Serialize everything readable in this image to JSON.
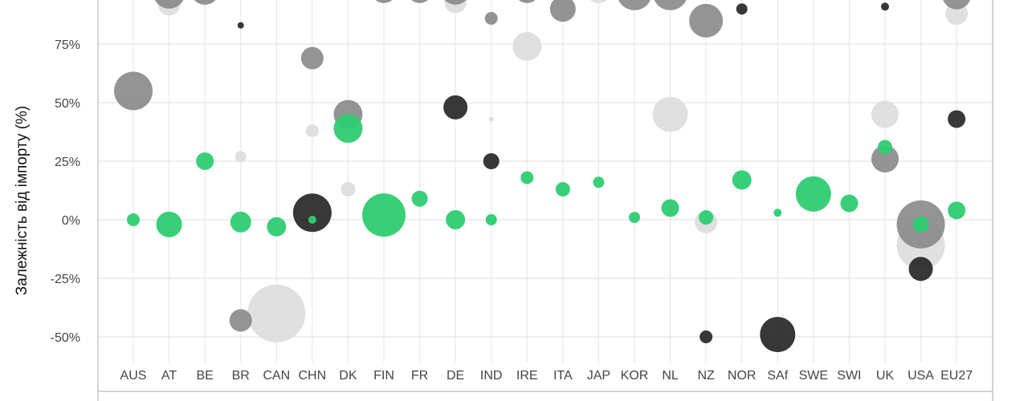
{
  "chart_data": {
    "type": "scatter",
    "subtype": "bubble",
    "title": "",
    "xlabel": "",
    "ylabel": "Залежність від імпорту (%)",
    "ylim": [
      -65,
      100
    ],
    "yticks": [
      -50,
      -25,
      0,
      25,
      50,
      75
    ],
    "ytick_labels": [
      "-50%",
      "-25%",
      "0%",
      "25%",
      "50%",
      "75%"
    ],
    "grid": true,
    "legend": "none",
    "categories": [
      "AUS",
      "AT",
      "BE",
      "BR",
      "CAN",
      "CHN",
      "DK",
      "FIN",
      "FR",
      "DE",
      "IND",
      "IRE",
      "ITA",
      "JAP",
      "KOR",
      "NL",
      "NZ",
      "NOR",
      "SAf",
      "SWE",
      "SWI",
      "UK",
      "USA",
      "EU27"
    ],
    "colors": {
      "green": "#2ecc71",
      "dark": "#222222",
      "medium": "#888888",
      "light": "#dddddd"
    },
    "series": [
      {
        "color_key": "light",
        "points": [
          {
            "category": "AT",
            "y": 92,
            "size": 14
          },
          {
            "category": "BR",
            "y": 27,
            "size": 7
          },
          {
            "category": "CAN",
            "y": -40,
            "size": 36
          },
          {
            "category": "CHN",
            "y": 38,
            "size": 8
          },
          {
            "category": "DK",
            "y": 13,
            "size": 9
          },
          {
            "category": "DE",
            "y": 93,
            "size": 14
          },
          {
            "category": "IRE",
            "y": 74,
            "size": 18
          },
          {
            "category": "JAP",
            "y": 98,
            "size": 16
          },
          {
            "category": "NL",
            "y": 45,
            "size": 22
          },
          {
            "category": "NZ",
            "y": -1,
            "size": 14
          },
          {
            "category": "UK",
            "y": 45,
            "size": 17
          },
          {
            "category": "USA",
            "y": -11,
            "size": 30
          },
          {
            "category": "EU27",
            "y": 88,
            "size": 14
          },
          {
            "category": "IND",
            "y": 43,
            "size": 3
          }
        ]
      },
      {
        "color_key": "medium",
        "points": [
          {
            "category": "AUS",
            "y": 55,
            "size": 24
          },
          {
            "category": "AT",
            "y": 97,
            "size": 20
          },
          {
            "category": "BE",
            "y": 98,
            "size": 18
          },
          {
            "category": "BR",
            "y": -43,
            "size": 14
          },
          {
            "category": "CHN",
            "y": 69,
            "size": 14
          },
          {
            "category": "DK",
            "y": 45,
            "size": 18
          },
          {
            "category": "FIN",
            "y": 98,
            "size": 16
          },
          {
            "category": "FR",
            "y": 98,
            "size": 16
          },
          {
            "category": "DE",
            "y": 98,
            "size": 18
          },
          {
            "category": "IND",
            "y": 86,
            "size": 8
          },
          {
            "category": "IRE",
            "y": 98,
            "size": 16
          },
          {
            "category": "ITA",
            "y": 90,
            "size": 16
          },
          {
            "category": "KOR",
            "y": 97,
            "size": 22
          },
          {
            "category": "NL",
            "y": 97,
            "size": 22
          },
          {
            "category": "NZ",
            "y": 85,
            "size": 21
          },
          {
            "category": "SWE",
            "y": 98,
            "size": 12
          },
          {
            "category": "SWI",
            "y": 98,
            "size": 12
          },
          {
            "category": "UK",
            "y": 26,
            "size": 17
          },
          {
            "category": "USA",
            "y": -2,
            "size": 30
          },
          {
            "category": "EU27",
            "y": 96,
            "size": 18
          }
        ]
      },
      {
        "color_key": "dark",
        "points": [
          {
            "category": "BR",
            "y": 83,
            "size": 4
          },
          {
            "category": "CHN",
            "y": 3,
            "size": 24
          },
          {
            "category": "DE",
            "y": 48,
            "size": 15
          },
          {
            "category": "IND",
            "y": 25,
            "size": 10
          },
          {
            "category": "NZ",
            "y": -50,
            "size": 8
          },
          {
            "category": "NOR",
            "y": 90,
            "size": 7
          },
          {
            "category": "SAf",
            "y": -49,
            "size": 22
          },
          {
            "category": "UK",
            "y": 91,
            "size": 5
          },
          {
            "category": "USA",
            "y": -21,
            "size": 15
          },
          {
            "category": "EU27",
            "y": 43,
            "size": 11
          }
        ]
      },
      {
        "color_key": "green",
        "points": [
          {
            "category": "AUS",
            "y": 0,
            "size": 8
          },
          {
            "category": "AT",
            "y": -2,
            "size": 16
          },
          {
            "category": "BE",
            "y": 25,
            "size": 11
          },
          {
            "category": "BR",
            "y": -1,
            "size": 13
          },
          {
            "category": "CAN",
            "y": -3,
            "size": 12
          },
          {
            "category": "CHN",
            "y": 0,
            "size": 5
          },
          {
            "category": "DK",
            "y": 39,
            "size": 18
          },
          {
            "category": "FIN",
            "y": 2,
            "size": 27
          },
          {
            "category": "FR",
            "y": 9,
            "size": 10
          },
          {
            "category": "DE",
            "y": 0,
            "size": 12
          },
          {
            "category": "IND",
            "y": 0,
            "size": 7
          },
          {
            "category": "IRE",
            "y": 18,
            "size": 8
          },
          {
            "category": "ITA",
            "y": 13,
            "size": 9
          },
          {
            "category": "JAP",
            "y": 16,
            "size": 7
          },
          {
            "category": "KOR",
            "y": 1,
            "size": 7
          },
          {
            "category": "NL",
            "y": 5,
            "size": 11
          },
          {
            "category": "NZ",
            "y": 1,
            "size": 9
          },
          {
            "category": "NOR",
            "y": 17,
            "size": 12
          },
          {
            "category": "SAf",
            "y": 3,
            "size": 5
          },
          {
            "category": "SWE",
            "y": 11,
            "size": 22
          },
          {
            "category": "SWI",
            "y": 7,
            "size": 11
          },
          {
            "category": "UK",
            "y": 31,
            "size": 9
          },
          {
            "category": "USA",
            "y": -2,
            "size": 10
          },
          {
            "category": "EU27",
            "y": 4,
            "size": 11
          }
        ]
      }
    ]
  }
}
